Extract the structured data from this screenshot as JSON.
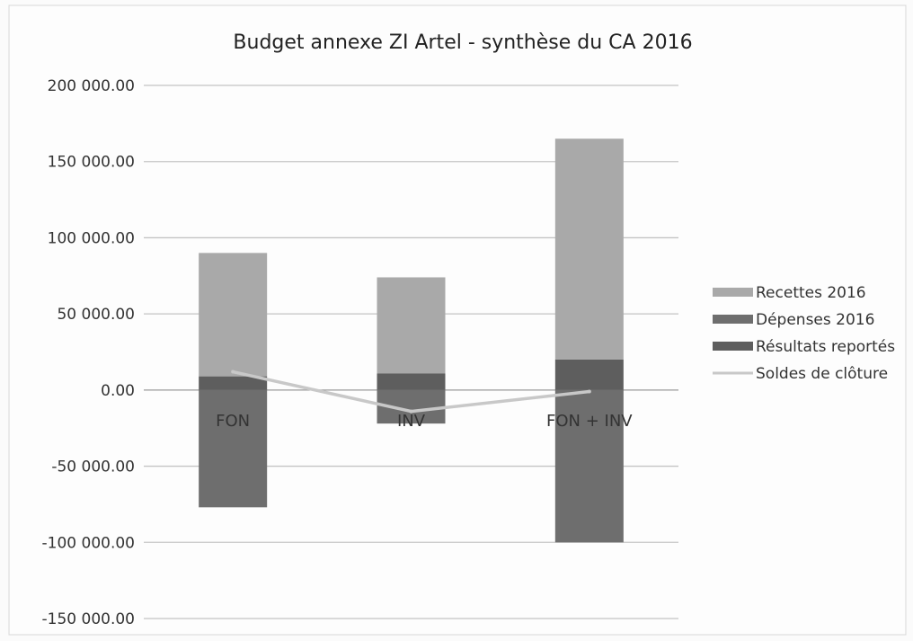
{
  "chart_data": {
    "type": "bar",
    "stacked": true,
    "title": "Budget annexe ZI Artel - synthèse du CA 2016",
    "categories": [
      "FON",
      "INV",
      "FON + INV"
    ],
    "ylim": [
      -150000,
      200000
    ],
    "yticks": [
      200000,
      150000,
      100000,
      50000,
      0,
      -50000,
      -100000,
      -150000
    ],
    "ytick_labels": [
      "200 000.00",
      "150 000.00",
      "100 000.00",
      "50 000.00",
      "0.00",
      "-50 000.00",
      "-100 000.00",
      "-150 000.00"
    ],
    "grid": true,
    "legend_position": "right",
    "series": [
      {
        "name": "Recettes 2016",
        "kind": "bar",
        "color": "#a9a9a9",
        "values": [
          81000,
          63000,
          145000
        ]
      },
      {
        "name": "Dépenses 2016",
        "kind": "bar",
        "color": "#6e6e6e",
        "values": [
          -77000,
          -22000,
          -100000
        ]
      },
      {
        "name": "Résultats reportés",
        "kind": "bar",
        "color": "#5e5e5e",
        "values": [
          9000,
          11000,
          20000
        ]
      },
      {
        "name": "Soldes de clôture",
        "kind": "line",
        "color": "#c8c8c8",
        "values": [
          12000,
          -14000,
          -1000
        ]
      }
    ]
  }
}
